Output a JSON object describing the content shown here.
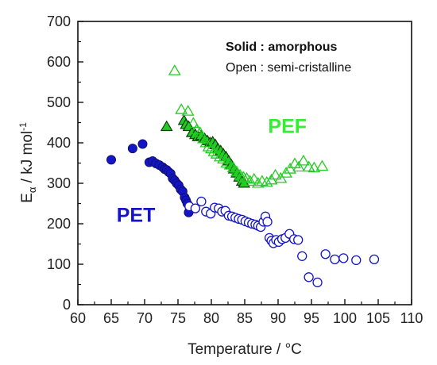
{
  "chart_data": {
    "type": "scatter",
    "xlabel": "Temperature / °C",
    "ylabel_main": "E",
    "ylabel_sub": "α",
    "ylabel_rest": " / kJ mol",
    "ylabel_sup": "-1",
    "xlim": [
      60,
      110
    ],
    "ylim": [
      0,
      700
    ],
    "xticks": [
      60,
      65,
      70,
      75,
      80,
      85,
      90,
      95,
      100,
      105,
      110
    ],
    "yticks": [
      0,
      100,
      200,
      300,
      400,
      500,
      600,
      700
    ],
    "grid": false,
    "legend_note": {
      "line1": "Solid : amorphous",
      "line2": "Open : semi-cristalline"
    },
    "series": [
      {
        "name": "PET",
        "state": "amorphous",
        "marker": "circle",
        "filled": true,
        "color": "#1515c8",
        "points": [
          [
            65.0,
            358
          ],
          [
            68.2,
            386
          ],
          [
            69.7,
            397
          ],
          [
            70.7,
            352
          ],
          [
            71.2,
            355
          ],
          [
            71.7,
            349
          ],
          [
            72.2,
            345
          ],
          [
            72.7,
            340
          ],
          [
            73.0,
            335
          ],
          [
            73.3,
            333
          ],
          [
            73.6,
            328
          ],
          [
            73.9,
            324
          ],
          [
            74.2,
            312
          ],
          [
            74.5,
            307
          ],
          [
            74.8,
            300
          ],
          [
            75.1,
            295
          ],
          [
            75.4,
            285
          ],
          [
            75.7,
            280
          ],
          [
            76.0,
            265
          ],
          [
            76.2,
            258
          ],
          [
            76.4,
            250
          ],
          [
            76.6,
            228
          ]
        ]
      },
      {
        "name": "PET",
        "state": "semi-cristalline",
        "marker": "circle",
        "filled": false,
        "color": "#1515c8",
        "points": [
          [
            76.7,
            243
          ],
          [
            77.6,
            238
          ],
          [
            78.5,
            255
          ],
          [
            79.2,
            230
          ],
          [
            79.9,
            225
          ],
          [
            80.5,
            240
          ],
          [
            81.1,
            238
          ],
          [
            81.6,
            230
          ],
          [
            82.1,
            232
          ],
          [
            82.6,
            220
          ],
          [
            83.1,
            218
          ],
          [
            83.6,
            215
          ],
          [
            84.1,
            212
          ],
          [
            84.6,
            210
          ],
          [
            85.1,
            206
          ],
          [
            85.6,
            203
          ],
          [
            86.1,
            200
          ],
          [
            86.6,
            198
          ],
          [
            87.0,
            195
          ],
          [
            87.4,
            192
          ],
          [
            87.8,
            205
          ],
          [
            88.1,
            218
          ],
          [
            88.4,
            205
          ],
          [
            88.7,
            165
          ],
          [
            89.0,
            158
          ],
          [
            89.3,
            152
          ],
          [
            89.7,
            160
          ],
          [
            90.1,
            155
          ],
          [
            90.6,
            162
          ],
          [
            91.1,
            165
          ],
          [
            91.7,
            175
          ],
          [
            92.4,
            162
          ],
          [
            93.0,
            160
          ],
          [
            93.6,
            120
          ],
          [
            94.6,
            68
          ],
          [
            95.9,
            55
          ],
          [
            97.1,
            125
          ],
          [
            98.5,
            112
          ],
          [
            99.8,
            115
          ],
          [
            101.7,
            110
          ],
          [
            104.4,
            112
          ]
        ]
      },
      {
        "name": "PEF",
        "state": "amorphous",
        "marker": "triangle",
        "filled": true,
        "color": "#22cc22",
        "points": [
          [
            73.3,
            440
          ],
          [
            75.9,
            455
          ],
          [
            76.2,
            445
          ],
          [
            76.6,
            440
          ],
          [
            77.1,
            425
          ],
          [
            77.6,
            420
          ],
          [
            78.0,
            415
          ],
          [
            78.5,
            418
          ],
          [
            79.0,
            410
          ],
          [
            79.4,
            405
          ],
          [
            79.8,
            400
          ],
          [
            80.2,
            402
          ],
          [
            80.6,
            395
          ],
          [
            81.0,
            385
          ],
          [
            81.4,
            380
          ],
          [
            81.8,
            372
          ],
          [
            82.2,
            365
          ],
          [
            82.6,
            355
          ],
          [
            83.0,
            345
          ],
          [
            83.4,
            335
          ],
          [
            83.8,
            325
          ],
          [
            84.2,
            315
          ],
          [
            84.6,
            305
          ],
          [
            84.9,
            300
          ]
        ]
      },
      {
        "name": "PEF",
        "state": "semi-cristalline",
        "marker": "triangle",
        "filled": false,
        "color": "#22cc22",
        "points": [
          [
            74.5,
            578
          ],
          [
            75.5,
            482
          ],
          [
            76.5,
            478
          ],
          [
            77.3,
            448
          ],
          [
            77.8,
            432
          ],
          [
            78.3,
            425
          ],
          [
            78.8,
            410
          ],
          [
            79.2,
            400
          ],
          [
            79.6,
            390
          ],
          [
            80.0,
            385
          ],
          [
            80.4,
            378
          ],
          [
            80.8,
            372
          ],
          [
            81.3,
            365
          ],
          [
            81.8,
            360
          ],
          [
            82.3,
            350
          ],
          [
            82.8,
            345
          ],
          [
            83.3,
            338
          ],
          [
            83.8,
            328
          ],
          [
            84.3,
            320
          ],
          [
            84.8,
            315
          ],
          [
            85.3,
            312
          ],
          [
            85.8,
            305
          ],
          [
            86.4,
            310
          ],
          [
            87.0,
            300
          ],
          [
            87.6,
            305
          ],
          [
            88.3,
            302
          ],
          [
            89.0,
            308
          ],
          [
            89.6,
            320
          ],
          [
            90.4,
            312
          ],
          [
            91.2,
            325
          ],
          [
            91.8,
            335
          ],
          [
            92.5,
            348
          ],
          [
            93.1,
            340
          ],
          [
            93.8,
            355
          ],
          [
            94.6,
            340
          ],
          [
            95.4,
            338
          ],
          [
            96.6,
            342
          ]
        ]
      }
    ],
    "annotations": [
      {
        "text": "PEF",
        "x": 88.5,
        "y": 425,
        "color": "#33ee33"
      },
      {
        "text": "PET",
        "x": 65.8,
        "y": 205,
        "color": "#1515c8"
      }
    ]
  }
}
